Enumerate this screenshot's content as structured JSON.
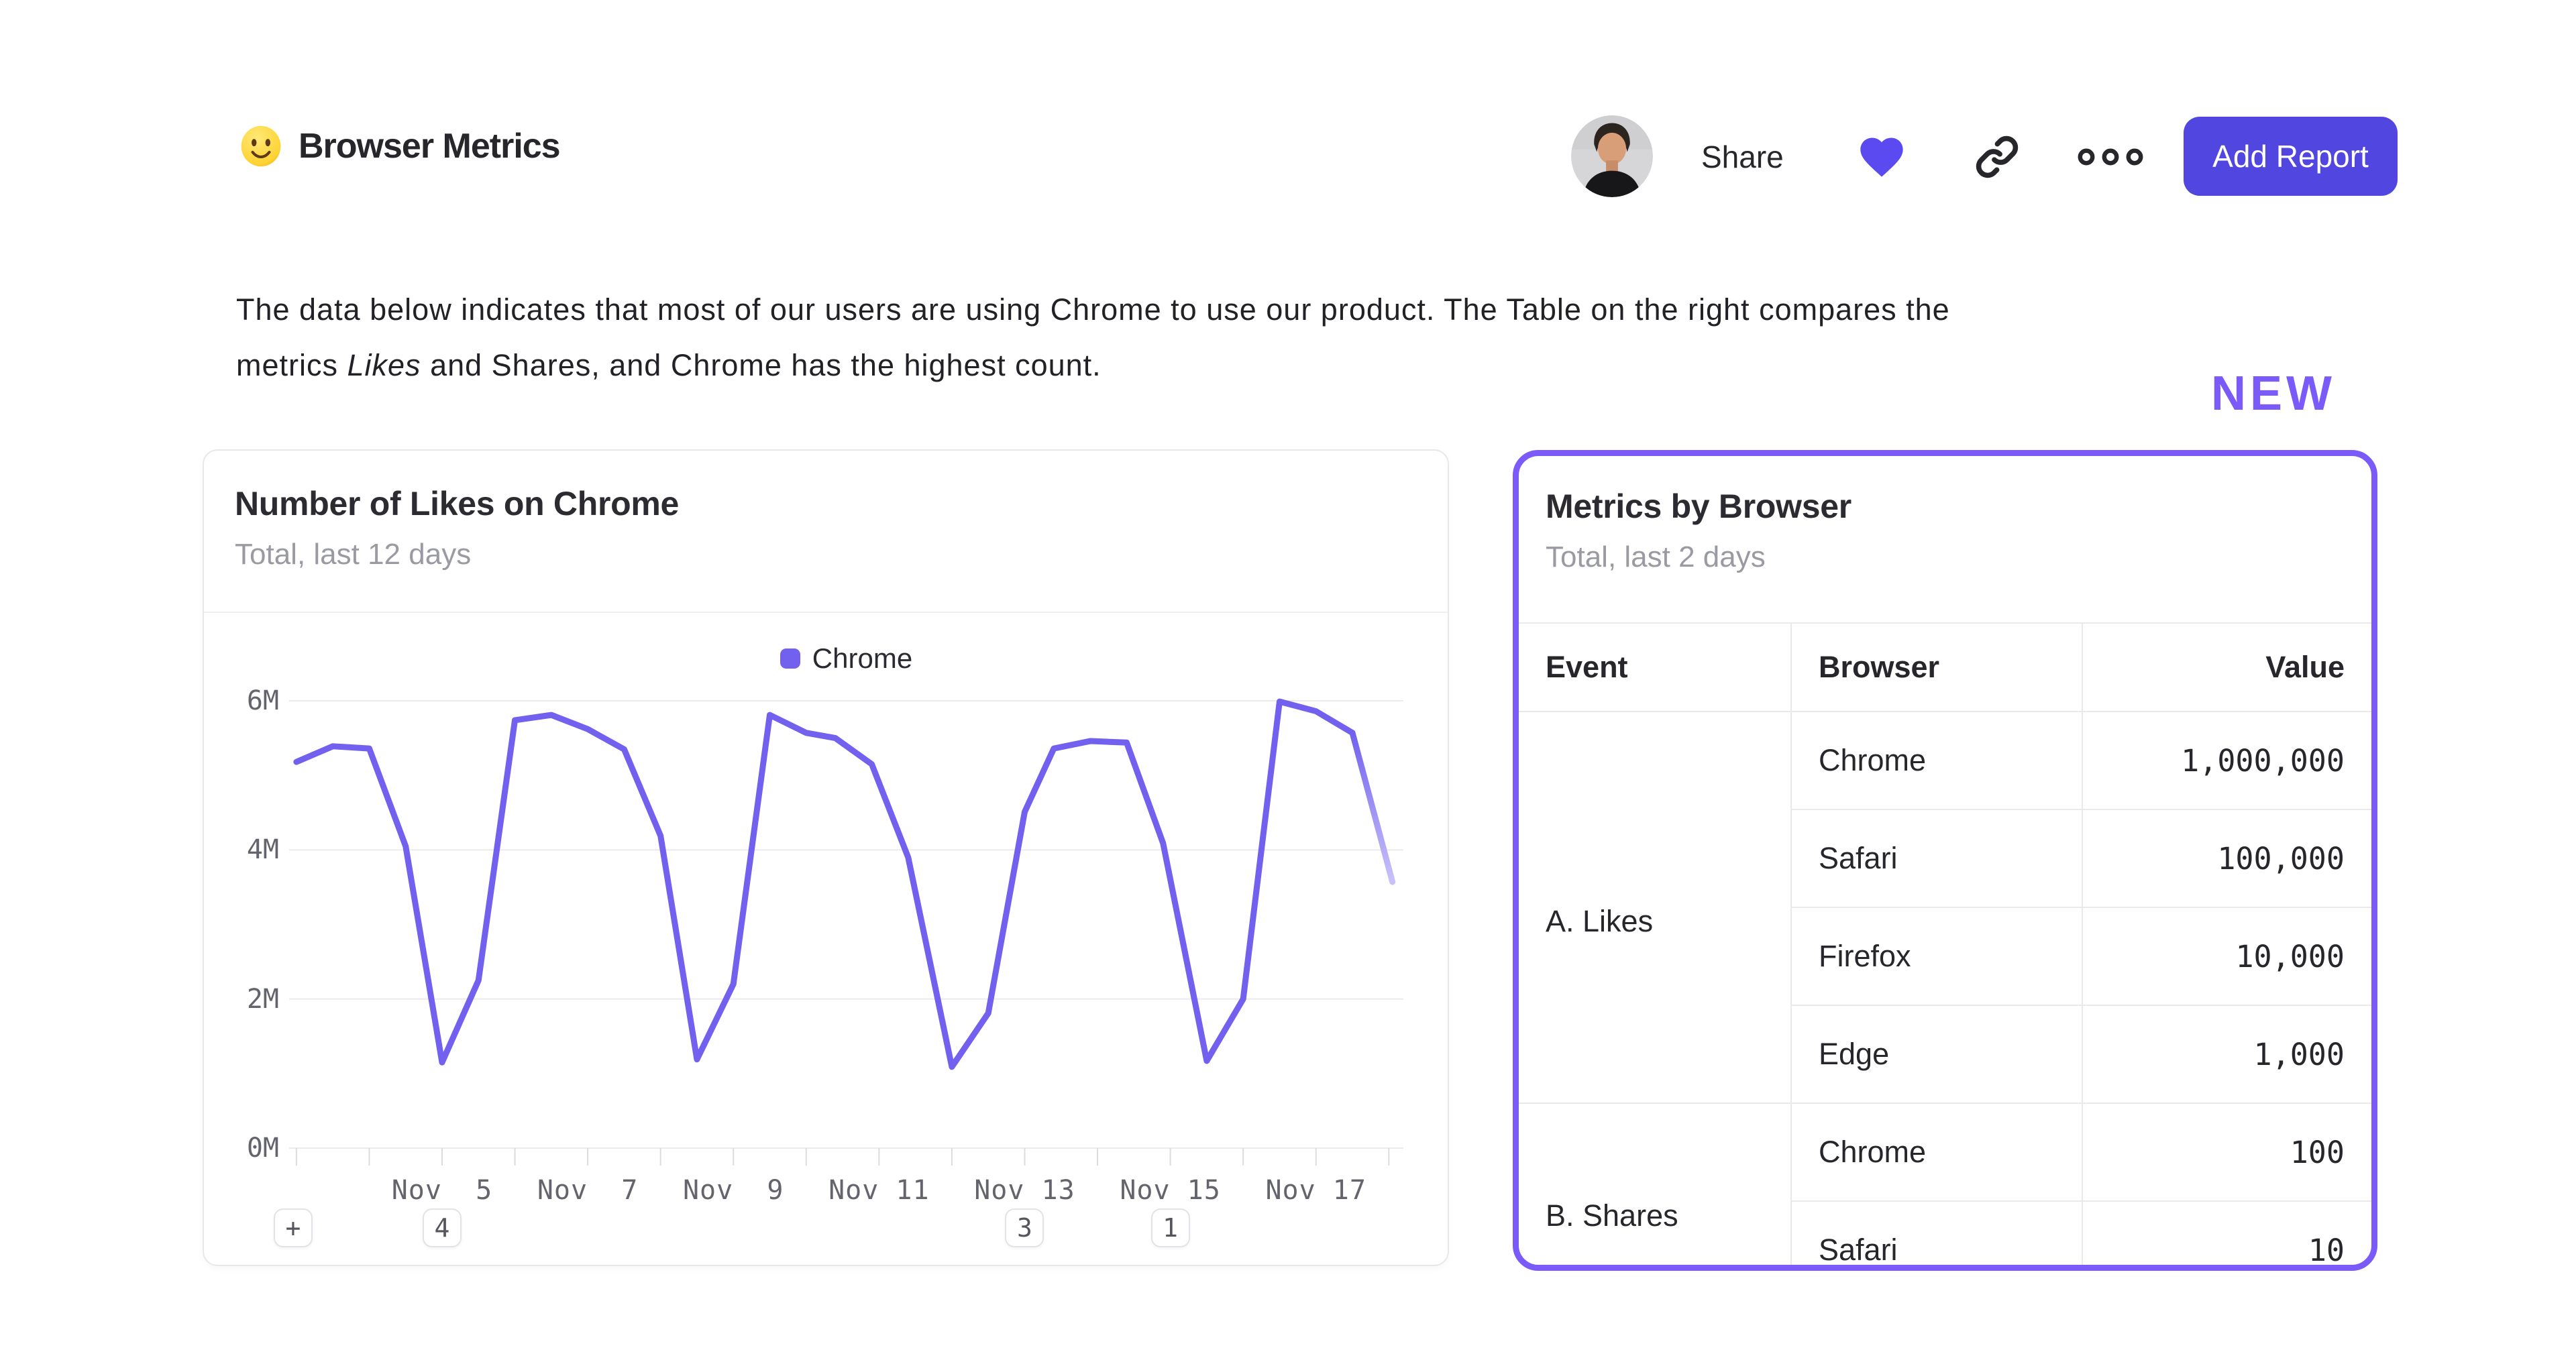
{
  "header": {
    "emoji_icon": "slightly-smiling-face",
    "title": "Browser Metrics",
    "toolbar": {
      "avatar_icon": "user-avatar-photo",
      "share_label": "Share",
      "favorite_icon": "heart-icon",
      "heart_color": "#5a4af0",
      "copy_link_icon": "link-icon",
      "more_icon": "ellipsis-icon",
      "add_report_label": "Add Report",
      "add_report_color": "#5246e0"
    }
  },
  "description": {
    "lines": [
      [
        {
          "text": "The data below indicates that most of our users are using Chrome to use our product. The Table on the right compares the",
          "italic": false
        }
      ],
      [
        {
          "text": "metrics ",
          "italic": false
        },
        {
          "text": "Likes",
          "italic": true
        },
        {
          "text": " and Shares, and Chrome has the highest count.",
          "italic": false
        }
      ]
    ]
  },
  "new_badge": {
    "label": "NEW",
    "color": "#7a5af8"
  },
  "chart_card": {
    "title": "Number of Likes on Chrome",
    "subtitle": "Total, last 12 days",
    "annotations": [
      {
        "label": "+",
        "day": null
      },
      {
        "label": "4",
        "day": 5
      },
      {
        "label": "3",
        "day": 13
      },
      {
        "label": "1",
        "day": 15
      }
    ]
  },
  "chart_data": {
    "type": "line",
    "title": "Number of Likes on Chrome",
    "legend_position": "top-center",
    "grid": "horizontal",
    "x_unit": "day of November",
    "x_range": [
      2.9,
      18.2
    ],
    "y_range": [
      0,
      6.4
    ],
    "y_ticks": [
      {
        "value": 0,
        "label": "0M"
      },
      {
        "value": 2,
        "label": "2M"
      },
      {
        "value": 4,
        "label": "4M"
      },
      {
        "value": 6,
        "label": "6M"
      }
    ],
    "x_ticks": [
      {
        "day": 5,
        "label": "Nov  5"
      },
      {
        "day": 7,
        "label": "Nov  7"
      },
      {
        "day": 9,
        "label": "Nov  9"
      },
      {
        "day": 11,
        "label": "Nov 11"
      },
      {
        "day": 13,
        "label": "Nov 13"
      },
      {
        "day": 15,
        "label": "Nov 15"
      },
      {
        "day": 17,
        "label": "Nov 17"
      }
    ],
    "x_minor_tick_days": [
      3,
      4,
      5,
      6,
      7,
      8,
      9,
      10,
      11,
      12,
      13,
      14,
      15,
      16,
      17,
      18
    ],
    "series": [
      {
        "name": "Chrome",
        "color": "#7261ee",
        "faded_tail_color": "#c9c2f9",
        "faded_tail_segments": 1,
        "points_unit": "millions",
        "points": [
          [
            3.0,
            5.18
          ],
          [
            3.5,
            5.39
          ],
          [
            4.0,
            5.36
          ],
          [
            4.5,
            4.05
          ],
          [
            5.0,
            1.15
          ],
          [
            5.5,
            2.25
          ],
          [
            6.0,
            5.74
          ],
          [
            6.5,
            5.81
          ],
          [
            7.0,
            5.62
          ],
          [
            7.5,
            5.35
          ],
          [
            8.0,
            4.19
          ],
          [
            8.5,
            1.19
          ],
          [
            9.0,
            2.2
          ],
          [
            9.5,
            5.81
          ],
          [
            10.0,
            5.57
          ],
          [
            10.4,
            5.5
          ],
          [
            10.9,
            5.15
          ],
          [
            11.4,
            3.9
          ],
          [
            12.0,
            1.09
          ],
          [
            12.5,
            1.81
          ],
          [
            13.0,
            4.51
          ],
          [
            13.4,
            5.36
          ],
          [
            13.9,
            5.46
          ],
          [
            14.4,
            5.44
          ],
          [
            14.9,
            4.09
          ],
          [
            15.5,
            1.17
          ],
          [
            16.0,
            2.0
          ],
          [
            16.5,
            5.99
          ],
          [
            17.0,
            5.86
          ],
          [
            17.5,
            5.57
          ],
          [
            18.05,
            3.57
          ]
        ]
      }
    ]
  },
  "table_card": {
    "title": "Metrics by Browser",
    "subtitle": "Total, last 2 days",
    "border_color": "#7a5af8",
    "columns": [
      "Event",
      "Browser",
      "Value"
    ],
    "groups": [
      {
        "event": "A. Likes",
        "rows": [
          {
            "browser": "Chrome",
            "value": "1,000,000"
          },
          {
            "browser": "Safari",
            "value": "100,000"
          },
          {
            "browser": "Firefox",
            "value": "10,000"
          },
          {
            "browser": "Edge",
            "value": "1,000"
          }
        ]
      },
      {
        "event": "B. Shares",
        "rows": [
          {
            "browser": "Chrome",
            "value": "100"
          },
          {
            "browser": "Safari",
            "value": "10"
          }
        ]
      }
    ]
  }
}
